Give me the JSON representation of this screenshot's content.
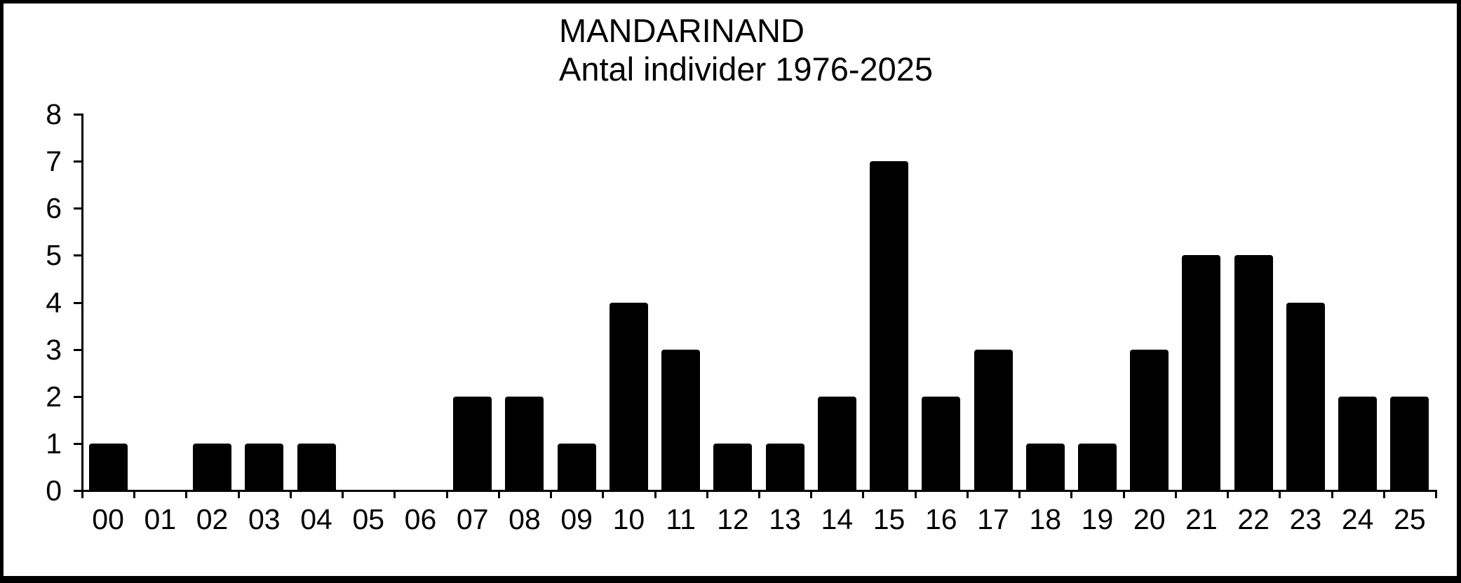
{
  "page": {
    "background": "#ffffff",
    "frame_color": "#000000"
  },
  "chart_data": {
    "type": "bar",
    "title": "MANDARINAND",
    "subtitle": "Antal individer 1976-2025",
    "categories": [
      "00",
      "01",
      "02",
      "03",
      "04",
      "05",
      "06",
      "07",
      "08",
      "09",
      "10",
      "11",
      "12",
      "13",
      "14",
      "15",
      "16",
      "17",
      "18",
      "19",
      "20",
      "21",
      "22",
      "23",
      "24",
      "25"
    ],
    "values": [
      1,
      0,
      1,
      1,
      1,
      0,
      0,
      2,
      2,
      1,
      4,
      3,
      1,
      1,
      2,
      7,
      2,
      3,
      1,
      1,
      3,
      5,
      5,
      4,
      2,
      2
    ],
    "xlabel": "",
    "ylabel": "",
    "ylim": [
      0,
      8
    ],
    "yticks": [
      0,
      1,
      2,
      3,
      4,
      5,
      6,
      7,
      8
    ],
    "bar_color": "#000000",
    "axis_color": "#000000",
    "text_color": "#000000",
    "grid": false,
    "legend": false
  }
}
